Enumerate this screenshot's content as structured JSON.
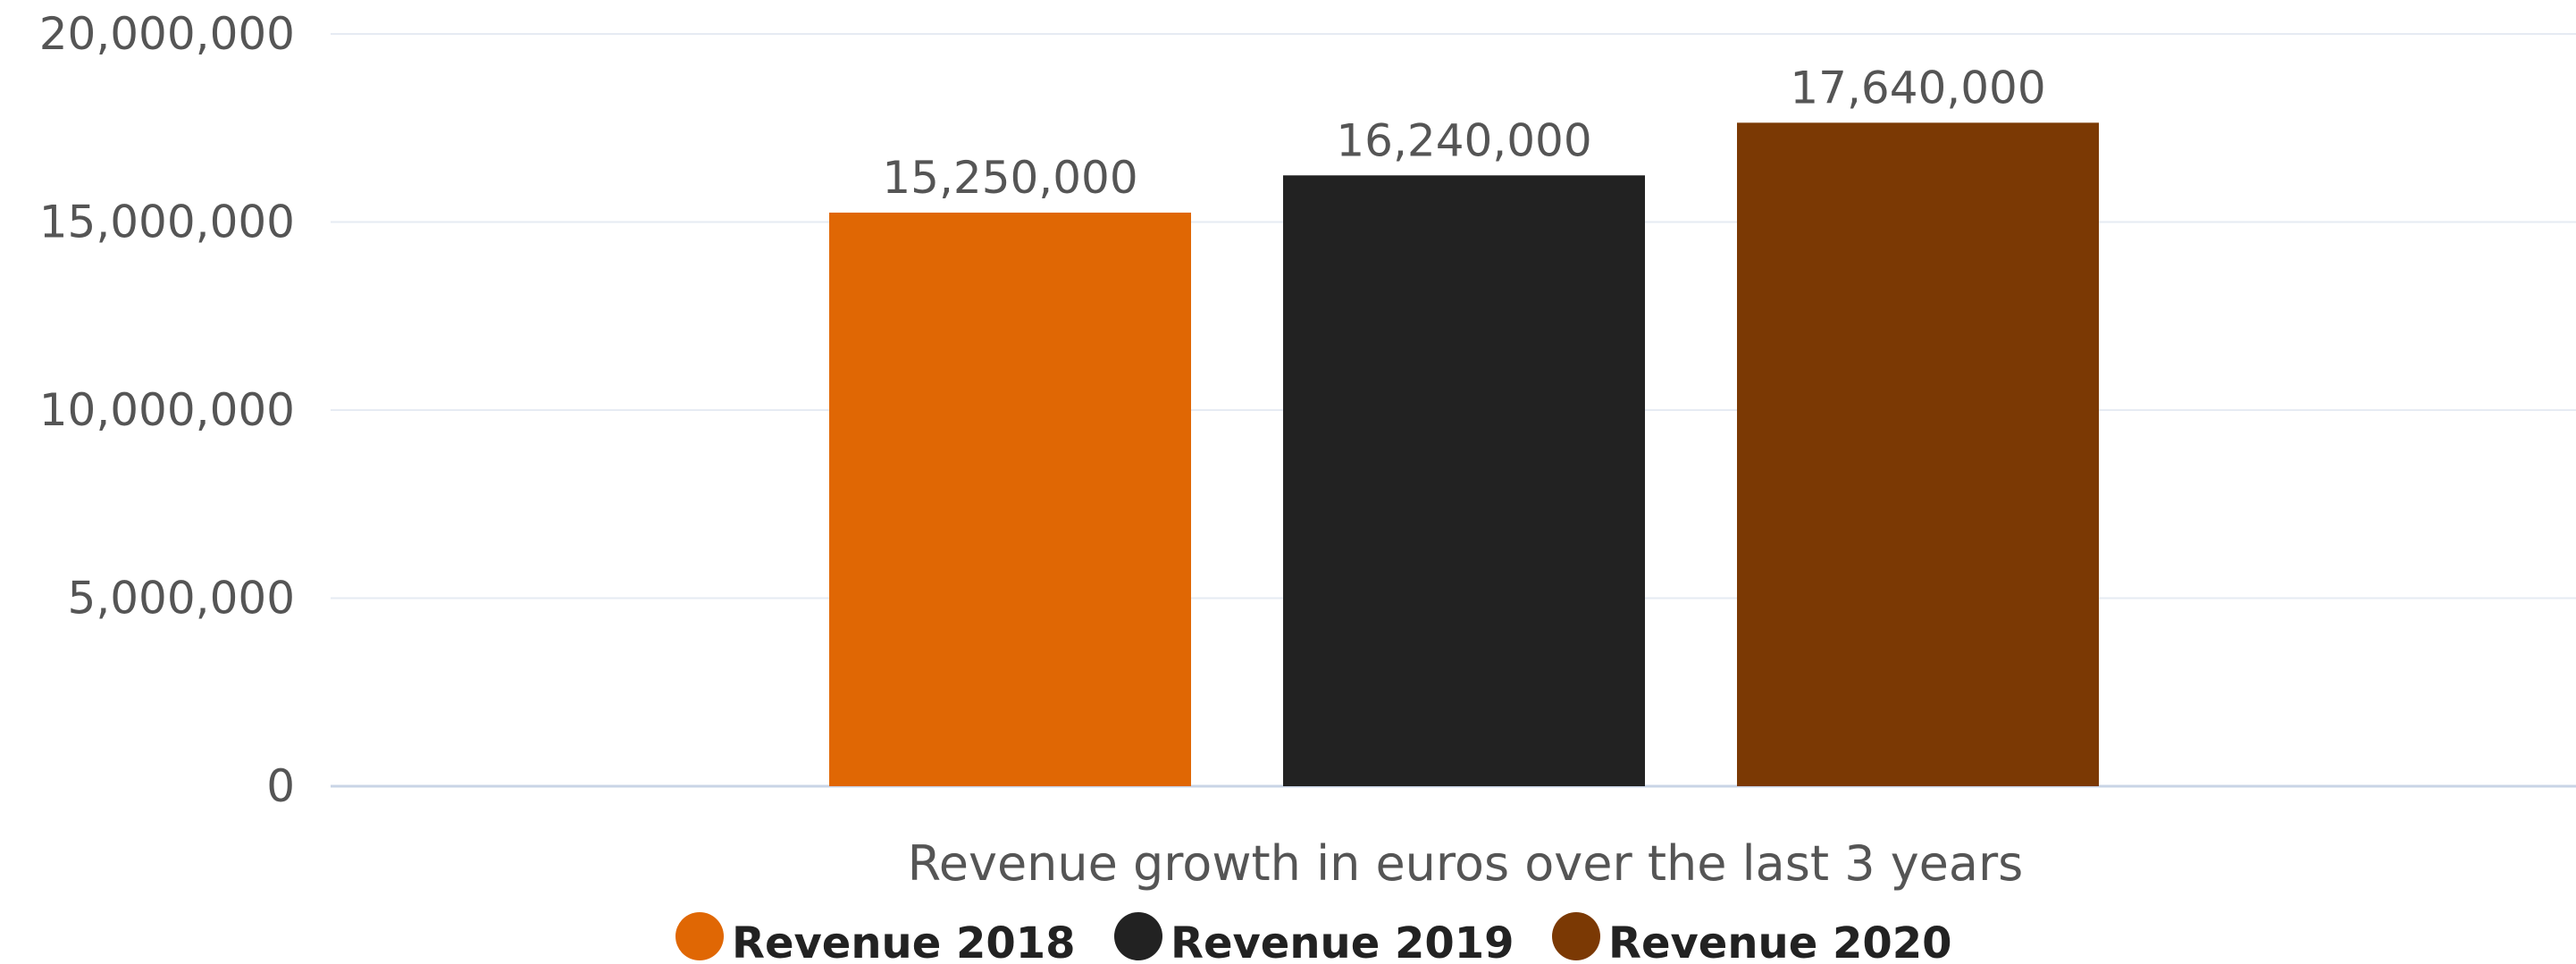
{
  "chart_data": {
    "type": "bar",
    "xlabel": "Revenue growth in euros over the last 3 years",
    "ylabel": "",
    "ylim": [
      0,
      20000000
    ],
    "yticks": [
      0,
      5000000,
      10000000,
      15000000,
      20000000
    ],
    "ytick_labels": [
      "0",
      "5,000,000",
      "10,000,000",
      "15,000,000",
      "20,000,000"
    ],
    "grid": true,
    "legend_position": "bottom-center",
    "series": [
      {
        "name": "Revenue 2018",
        "value": 15250000,
        "label": "15,250,000",
        "color": "#e06704"
      },
      {
        "name": "Revenue 2019",
        "value": 16240000,
        "label": "16,240,000",
        "color": "#222222"
      },
      {
        "name": "Revenue 2020",
        "value": 17640000,
        "label": "17,640,000",
        "color": "#7b3904"
      }
    ]
  }
}
